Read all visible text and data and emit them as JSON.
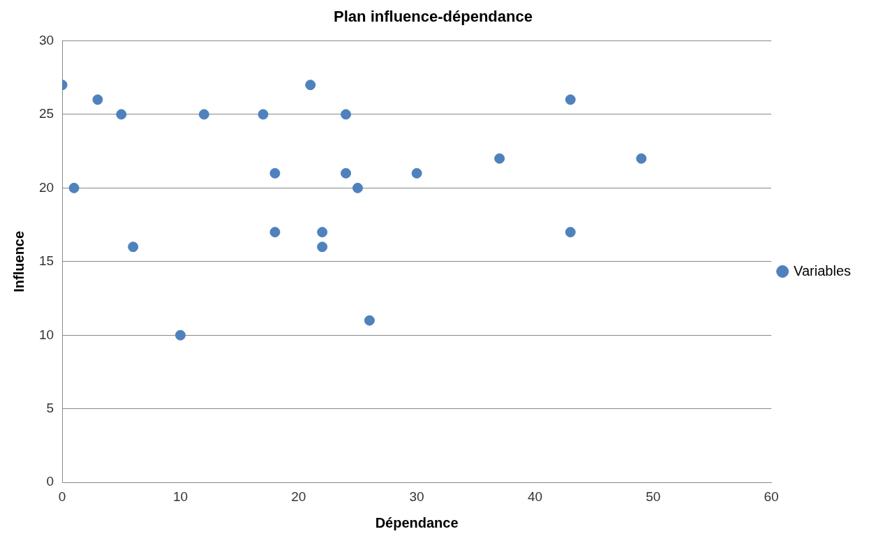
{
  "chart_data": {
    "type": "scatter",
    "title": "Plan influence-dépendance",
    "xlabel": "Dépendance",
    "ylabel": "Influence",
    "x": [
      0,
      1,
      3,
      5,
      6,
      10,
      12,
      17,
      18,
      18,
      21,
      22,
      22,
      24,
      24,
      25,
      26,
      30,
      37,
      43,
      43,
      49
    ],
    "series": [
      {
        "name": "Variables",
        "color": "#4f81bd",
        "values": [
          27,
          20,
          26,
          25,
          16,
          10,
          25,
          25,
          21,
          17,
          27,
          17,
          16,
          25,
          21,
          20,
          11,
          21,
          22,
          26,
          17,
          22
        ]
      }
    ],
    "xlim": [
      0,
      60
    ],
    "xticks": [
      0,
      10,
      20,
      30,
      40,
      50,
      60
    ],
    "ylim": [
      0,
      30
    ],
    "yticks": [
      0,
      5,
      10,
      15,
      20,
      25,
      30
    ],
    "grid": "y",
    "legend": "right",
    "marker": "circle"
  }
}
